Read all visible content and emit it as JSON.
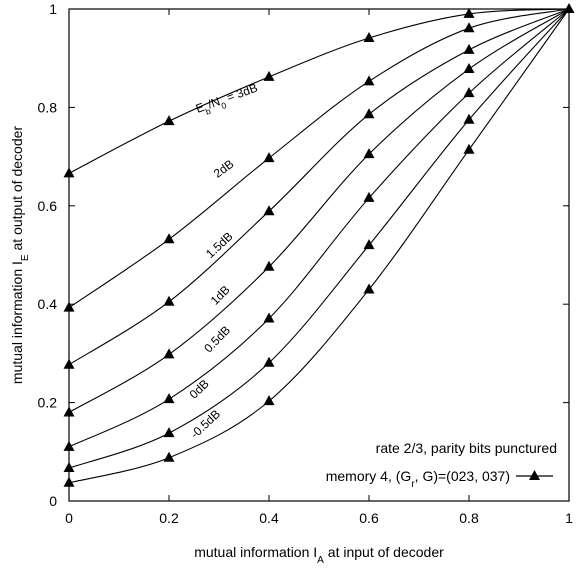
{
  "chart_data": {
    "type": "line",
    "title": "",
    "xlabel": "mutual information I_A at input of decoder",
    "ylabel": "mutual information I_E at output of decoder",
    "xlim": [
      0,
      1
    ],
    "ylim": [
      0,
      1
    ],
    "xticks": [
      0,
      0.2,
      0.4,
      0.6,
      0.8,
      1
    ],
    "yticks": [
      0,
      0.2,
      0.4,
      0.6,
      0.8,
      1
    ],
    "xtick_labels": [
      "0",
      "0.2",
      "0.4",
      "0.6",
      "0.8",
      "1"
    ],
    "ytick_labels": [
      "0",
      "0.2",
      "0.4",
      "0.6",
      "0.8",
      "1"
    ],
    "grid": false,
    "marker": "triangle",
    "series": [
      {
        "name": "E_b/N_0 = 3dB",
        "x": [
          0,
          0.2,
          0.4,
          0.6,
          0.8,
          1
        ],
        "y": [
          0.666,
          0.772,
          0.862,
          0.941,
          0.99,
          1.0
        ]
      },
      {
        "name": "2dB",
        "x": [
          0,
          0.2,
          0.4,
          0.6,
          0.8,
          1
        ],
        "y": [
          0.393,
          0.532,
          0.697,
          0.853,
          0.961,
          1.0
        ]
      },
      {
        "name": "1.5dB",
        "x": [
          0,
          0.2,
          0.4,
          0.6,
          0.8,
          1
        ],
        "y": [
          0.277,
          0.405,
          0.589,
          0.786,
          0.917,
          1.0
        ]
      },
      {
        "name": "1dB",
        "x": [
          0,
          0.2,
          0.4,
          0.6,
          0.8,
          1
        ],
        "y": [
          0.18,
          0.298,
          0.476,
          0.705,
          0.878,
          1.0
        ]
      },
      {
        "name": "0.5dB",
        "x": [
          0,
          0.2,
          0.4,
          0.6,
          0.8,
          1
        ],
        "y": [
          0.11,
          0.207,
          0.371,
          0.616,
          0.829,
          1.0
        ]
      },
      {
        "name": "0dB",
        "x": [
          0,
          0.2,
          0.4,
          0.6,
          0.8,
          1
        ],
        "y": [
          0.067,
          0.138,
          0.281,
          0.52,
          0.775,
          1.0
        ]
      },
      {
        "name": "-0.5dB",
        "x": [
          0,
          0.2,
          0.4,
          0.6,
          0.8,
          1
        ],
        "y": [
          0.037,
          0.088,
          0.203,
          0.43,
          0.714,
          1.0
        ]
      }
    ],
    "legend": {
      "line1": "rate 2/3, parity bits punctured",
      "line2": "memory 4,  (G_r, G)=(023, 037)",
      "position": "bottom-right"
    }
  }
}
